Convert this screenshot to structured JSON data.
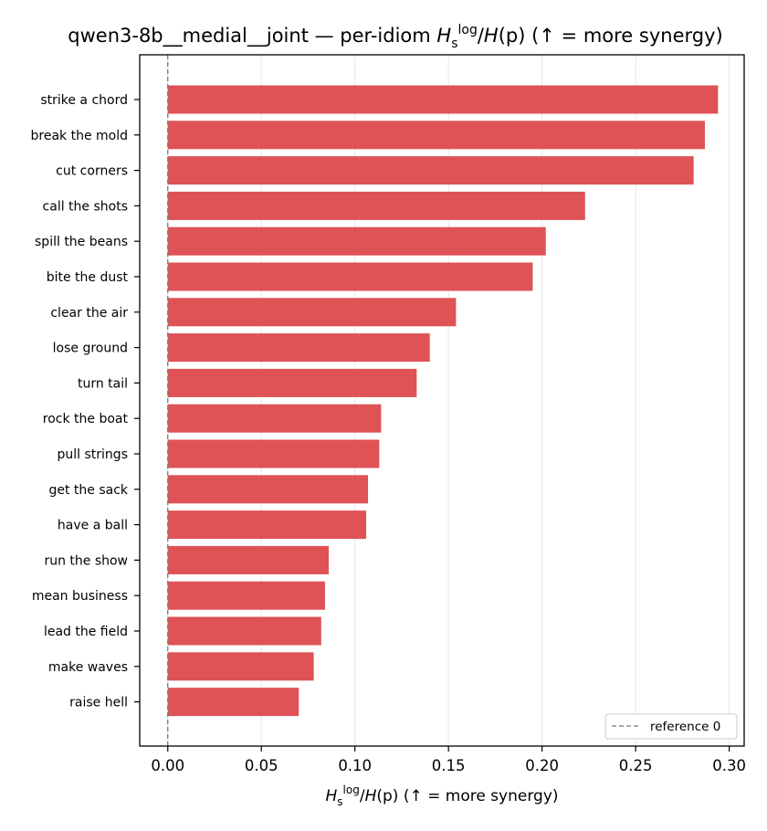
{
  "chart_data": {
    "type": "bar",
    "orientation": "horizontal",
    "title": {
      "prefix": "qwen3-8b__medial__joint — per-idiom ",
      "metric_H": "H",
      "metric_sub": "s",
      "metric_sup": "log",
      "metric_rest": "/",
      "metric_H2": "H",
      "metric_paren": "(p)",
      "suffix": "  (↑ = more synergy)"
    },
    "xlabel": {
      "metric_H": "H",
      "metric_sub": "s",
      "metric_sup": "log",
      "metric_rest": "/",
      "metric_H2": "H",
      "metric_paren": "(p)",
      "suffix": "  (↑ = more synergy)"
    },
    "categories": [
      "strike a chord",
      "break the mold",
      "cut corners",
      "call the shots",
      "spill the beans",
      "bite the dust",
      "clear the air",
      "lose ground",
      "turn tail",
      "rock the boat",
      "pull strings",
      "get the sack",
      "have a ball",
      "run the show",
      "mean business",
      "lead the field",
      "make waves",
      "raise hell"
    ],
    "values": [
      0.294,
      0.287,
      0.281,
      0.223,
      0.202,
      0.195,
      0.154,
      0.14,
      0.133,
      0.114,
      0.113,
      0.107,
      0.106,
      0.086,
      0.084,
      0.082,
      0.078,
      0.07
    ],
    "xlim": [
      -0.015,
      0.308
    ],
    "xticks": [
      "0.00",
      "0.05",
      "0.10",
      "0.15",
      "0.20",
      "0.25",
      "0.30"
    ],
    "xtick_values": [
      0,
      0.05,
      0.1,
      0.15,
      0.2,
      0.25,
      0.3
    ],
    "reference_line": {
      "x": 0,
      "label": "reference 0"
    },
    "grid": "x",
    "legend_position": "bottom-right",
    "colors": {
      "bar": "#df5255",
      "reference": "#777777",
      "grid": "#e6e6e6"
    }
  }
}
